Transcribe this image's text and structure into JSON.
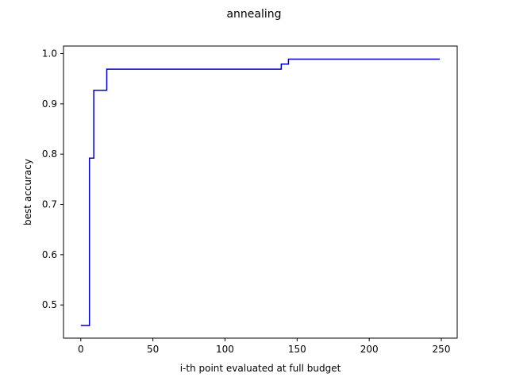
{
  "chart_data": {
    "type": "line",
    "title": "annealing",
    "xlabel": "i-th point evaluated at full budget",
    "ylabel": "best accuracy",
    "xlim": [
      -12,
      261
    ],
    "ylim": [
      0.434,
      1.015
    ],
    "xticks": [
      0,
      50,
      100,
      150,
      200,
      250
    ],
    "yticks": [
      0.5,
      0.6,
      0.7,
      0.8,
      0.9,
      1.0
    ],
    "ytick_labels": [
      "0.5",
      "0.6",
      "0.7",
      "0.8",
      "0.9",
      "1.0"
    ],
    "grid": false,
    "legend": false,
    "series": [
      {
        "color": "#0000cc",
        "step": "post",
        "x": [
          0,
          5,
          6,
          8,
          9,
          17,
          18,
          138,
          139,
          143,
          144,
          249
        ],
        "y": [
          0.459,
          0.459,
          0.792,
          0.792,
          0.927,
          0.927,
          0.969,
          0.969,
          0.979,
          0.979,
          0.989,
          0.989
        ]
      }
    ]
  }
}
